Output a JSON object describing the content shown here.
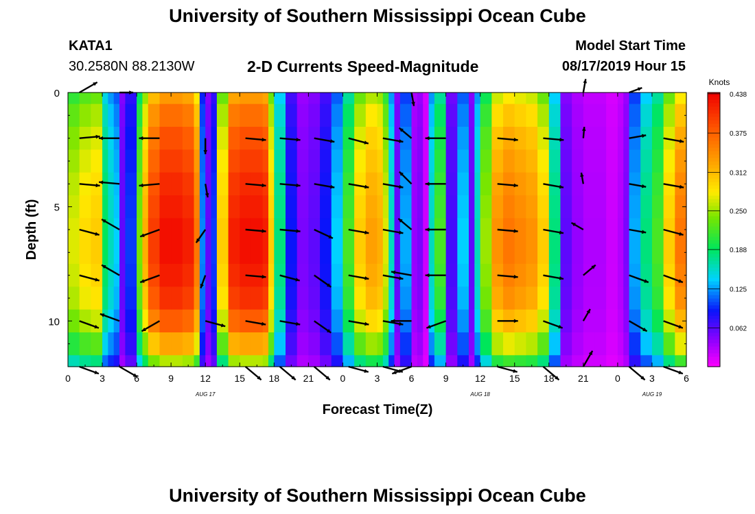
{
  "header": {
    "title": "University of Southern Mississippi Ocean Cube",
    "station": "KATA1",
    "coords": "30.2580N 88.2130W",
    "subtitle": "2-D Currents Speed-Magnitude",
    "model_label": "Model Start Time",
    "model_time": "08/17/2019 Hour 15"
  },
  "footer": {
    "title": "University of Southern Mississippi Ocean Cube"
  },
  "chart_data": {
    "type": "heatmap",
    "title": "2-D Currents Speed-Magnitude",
    "xlabel": "Forecast Time(Z)",
    "ylabel": "Depth (ft)",
    "x_range": [
      0,
      54
    ],
    "y_range": [
      0,
      12
    ],
    "x_tick_values": [
      0,
      3,
      6,
      9,
      12,
      15,
      18,
      21,
      24,
      27,
      30,
      33,
      36,
      39,
      42,
      45,
      48,
      51,
      54
    ],
    "x_tick_labels": [
      "0",
      "3",
      "6",
      "9",
      "12",
      "15",
      "18",
      "21",
      "0",
      "3",
      "6",
      "9",
      "12",
      "15",
      "18",
      "21",
      "0",
      "3",
      "6"
    ],
    "day_labels": [
      {
        "x": 12,
        "text": "AUG 17"
      },
      {
        "x": 36,
        "text": "AUG 18"
      },
      {
        "x": 51,
        "text": "AUG 19"
      }
    ],
    "y_tick_values": [
      0,
      5,
      10
    ],
    "y_tick_labels": [
      "0",
      "5",
      "10"
    ],
    "colorbar": {
      "label": "Knots",
      "min": 0.0,
      "max": 0.44,
      "ticks": [
        "0.438",
        "0.375",
        "0.312",
        "0.250",
        "0.188",
        "0.125",
        "0.062"
      ],
      "tick_values": [
        0.438,
        0.375,
        0.312,
        0.25,
        0.188,
        0.125,
        0.062
      ]
    },
    "speed_profile": {
      "hours": [
        0,
        1,
        2,
        3,
        3.5,
        4,
        4.5,
        5,
        6,
        6.5,
        7,
        8,
        9,
        10,
        11,
        11.5,
        12,
        12.5,
        13,
        14,
        15,
        16,
        17,
        17.5,
        18,
        19,
        20,
        21,
        22,
        23,
        24,
        25,
        26,
        27,
        27.5,
        28,
        28.5,
        29,
        30,
        30.5,
        31,
        31.5,
        32,
        33,
        34,
        35,
        35.5,
        36,
        37,
        38,
        39,
        40,
        41,
        42,
        43,
        44,
        45,
        46,
        47,
        48,
        48.5,
        49,
        50,
        51,
        52,
        53,
        54
      ],
      "peak_speeds": [
        0.27,
        0.29,
        0.3,
        0.19,
        0.16,
        0.14,
        0.06,
        0.1,
        0.24,
        0.32,
        0.4,
        0.43,
        0.43,
        0.42,
        0.36,
        0.12,
        0.06,
        0.1,
        0.3,
        0.42,
        0.43,
        0.43,
        0.42,
        0.3,
        0.18,
        0.09,
        0.05,
        0.06,
        0.09,
        0.14,
        0.22,
        0.3,
        0.33,
        0.32,
        0.27,
        0.16,
        0.06,
        0.13,
        0.04,
        0.05,
        0.02,
        0.16,
        0.22,
        0.07,
        0.14,
        0.06,
        0.16,
        0.25,
        0.34,
        0.36,
        0.35,
        0.34,
        0.3,
        0.18,
        0.06,
        0.04,
        0.03,
        0.03,
        0.02,
        0.03,
        0.05,
        0.13,
        0.18,
        0.22,
        0.3,
        0.36,
        0.4
      ],
      "depth_factor": [
        0.78,
        0.85,
        0.9,
        0.93,
        0.96,
        0.98,
        1.0,
        1.0,
        0.98,
        0.95,
        0.88,
        0.76,
        0.6
      ]
    },
    "vectors": {
      "hours": [
        1,
        4.5,
        8,
        12,
        15.5,
        18.5,
        21.5,
        24.5,
        27.5,
        30,
        33,
        37.5,
        41.5,
        45,
        49,
        52
      ],
      "depths": [
        0,
        2,
        4,
        6,
        8,
        10,
        12
      ],
      "angles_deg": [
        [
          30,
          0,
          0,
          0,
          0,
          0,
          0,
          0,
          0,
          -80,
          0,
          0,
          0,
          80,
          20,
          0
        ],
        [
          5,
          180,
          180,
          -90,
          -5,
          -5,
          -10,
          -15,
          -10,
          140,
          180,
          -5,
          -5,
          85,
          10,
          -10
        ],
        [
          -5,
          175,
          185,
          -80,
          -5,
          -5,
          -10,
          -10,
          -10,
          135,
          180,
          -5,
          -10,
          100,
          -10,
          -10
        ],
        [
          -15,
          150,
          200,
          -125,
          -5,
          -5,
          -25,
          -10,
          -10,
          140,
          180,
          -5,
          -10,
          150,
          -10,
          -15
        ],
        [
          -15,
          150,
          200,
          -110,
          -5,
          -15,
          -35,
          -10,
          -10,
          170,
          180,
          -5,
          -10,
          40,
          -20,
          -20
        ],
        [
          -20,
          160,
          210,
          -15,
          -10,
          -10,
          -35,
          -10,
          -10,
          180,
          200,
          0,
          -20,
          60,
          -30,
          -20
        ],
        [
          -20,
          -30,
          0,
          0,
          -40,
          -40,
          -40,
          -15,
          -15,
          200,
          0,
          -15,
          -40,
          60,
          -40,
          -20
        ]
      ],
      "lengths_hours": [
        [
          1.8,
          1.2,
          0,
          0,
          0,
          0,
          0,
          0,
          0,
          1.2,
          0,
          0,
          0,
          1.2,
          1.2,
          0
        ],
        [
          1.8,
          1.8,
          1.8,
          1.4,
          1.8,
          1.8,
          1.8,
          1.8,
          1.8,
          1.4,
          1.8,
          1.8,
          1.8,
          1.0,
          1.5,
          1.8
        ],
        [
          1.8,
          1.8,
          1.8,
          1.2,
          1.8,
          1.8,
          1.8,
          1.8,
          1.8,
          1.5,
          1.8,
          1.8,
          1.8,
          1.0,
          1.5,
          1.8
        ],
        [
          1.8,
          1.8,
          1.8,
          1.4,
          1.8,
          1.8,
          1.8,
          1.8,
          1.8,
          1.5,
          1.8,
          1.8,
          1.8,
          1.2,
          1.5,
          1.8
        ],
        [
          1.8,
          1.8,
          1.8,
          1.2,
          1.8,
          1.8,
          1.8,
          1.8,
          1.8,
          1.8,
          1.8,
          1.8,
          1.8,
          1.4,
          1.8,
          1.8
        ],
        [
          1.8,
          1.8,
          1.8,
          1.8,
          1.8,
          1.8,
          1.8,
          1.8,
          1.8,
          1.8,
          1.8,
          1.8,
          1.8,
          1.2,
          1.8,
          1.8
        ],
        [
          1.8,
          1.8,
          0,
          0,
          1.8,
          1.8,
          1.8,
          1.8,
          1.8,
          1.8,
          0,
          1.8,
          1.8,
          1.6,
          1.8,
          1.8
        ]
      ]
    }
  }
}
